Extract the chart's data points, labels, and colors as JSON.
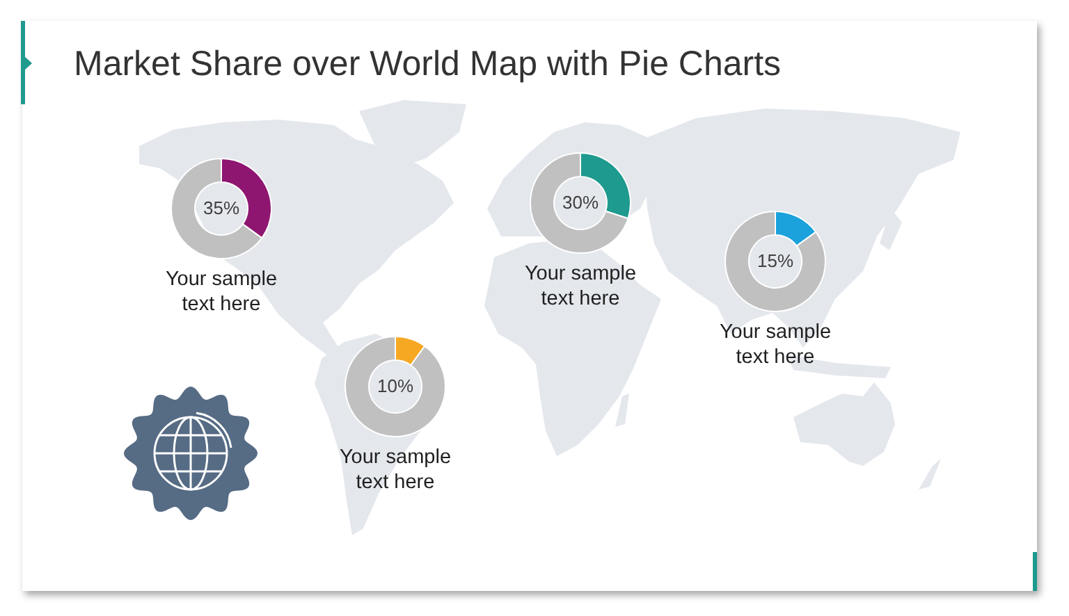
{
  "chart_data": [
    {
      "type": "donut",
      "title": "Market Share over World Map with Pie Charts",
      "categories": [
        null,
        null
      ],
      "values": [
        35,
        65
      ],
      "colors": [
        "#8e1671",
        "#c0c0c0"
      ],
      "value_labels": [
        "35%",
        null
      ],
      "annotations": [
        "Your sample text here"
      ]
    },
    {
      "type": "donut",
      "categories": [
        null,
        null
      ],
      "values": [
        30,
        70
      ],
      "colors": [
        "#1e9a8e",
        "#c0c0c0"
      ],
      "value_labels": [
        "30%",
        null
      ],
      "annotations": [
        "Your sample text here"
      ]
    },
    {
      "type": "donut",
      "categories": [
        null,
        null
      ],
      "values": [
        15,
        85
      ],
      "colors": [
        "#1ba1db",
        "#c0c0c0"
      ],
      "value_labels": [
        "15%",
        null
      ],
      "annotations": [
        "Your sample text here"
      ]
    },
    {
      "type": "donut",
      "categories": [
        null,
        null
      ],
      "values": [
        10,
        90
      ],
      "colors": [
        "#f7a823",
        "#c0c0c0"
      ],
      "value_labels": [
        "10%",
        null
      ],
      "annotations": [
        "Your sample text here"
      ]
    }
  ]
}
